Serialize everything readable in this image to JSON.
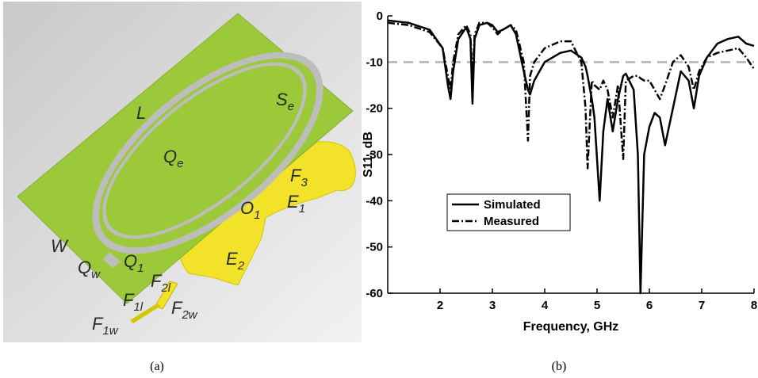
{
  "diagram": {
    "caption": "(a)",
    "labels": [
      {
        "text": "L"
      },
      {
        "text": "S",
        "sub": "e"
      },
      {
        "text": "Q",
        "sub": "e"
      },
      {
        "text": "F",
        "sub": "3"
      },
      {
        "text": "E",
        "sub": "1"
      },
      {
        "text": "O",
        "sub": "1"
      },
      {
        "text": "W"
      },
      {
        "text": "Q",
        "sub": "1"
      },
      {
        "text": "Q",
        "sub": "w"
      },
      {
        "text": "E",
        "sub": "2"
      },
      {
        "text": "F",
        "sub": "2l"
      },
      {
        "text": "F",
        "sub": "1l"
      },
      {
        "text": "F",
        "sub": "2w"
      },
      {
        "text": "F",
        "sub": "1w"
      }
    ]
  },
  "chart_data": {
    "type": "line",
    "caption": "(b)",
    "xlabel": "Frequency, GHz",
    "ylabel": "S11, dB",
    "xlim": [
      1,
      8
    ],
    "ylim": [
      -60,
      0
    ],
    "xticks": [
      2,
      3,
      4,
      5,
      6,
      7,
      8
    ],
    "yticks": [
      -60,
      -50,
      -40,
      -30,
      -20,
      -10,
      0
    ],
    "grid": false,
    "legend": "center left",
    "ref_line": {
      "y": -10,
      "color": "#b3b3b3"
    },
    "x": [
      1.0,
      1.4,
      1.8,
      2.05,
      2.15,
      2.2,
      2.25,
      2.35,
      2.5,
      2.58,
      2.62,
      2.66,
      2.75,
      2.9,
      3.0,
      3.1,
      3.2,
      3.35,
      3.45,
      3.6,
      3.68,
      3.72,
      3.8,
      4.0,
      4.3,
      4.5,
      4.7,
      4.78,
      4.82,
      4.9,
      4.95,
      5.05,
      5.12,
      5.2,
      5.3,
      5.4,
      5.5,
      5.55,
      5.7,
      5.78,
      5.83,
      5.9,
      6.0,
      6.1,
      6.2,
      6.3,
      6.45,
      6.6,
      6.75,
      6.85,
      6.95,
      7.1,
      7.3,
      7.5,
      7.7,
      7.85,
      8.0
    ],
    "series": [
      {
        "name": "Simulated",
        "color": "#000000",
        "style": "solid",
        "values": [
          -1,
          -1.5,
          -3,
          -7,
          -15,
          -18,
          -12,
          -5,
          -2.5,
          -5,
          -19,
          -5,
          -2,
          -1.5,
          -2,
          -3.5,
          -3,
          -2,
          -4,
          -12,
          -16,
          -17,
          -14,
          -10,
          -8,
          -7.5,
          -9,
          -11,
          -13,
          -18,
          -22,
          -40,
          -25,
          -18,
          -25,
          -18,
          -13,
          -12.5,
          -16,
          -30,
          -60,
          -30,
          -24,
          -21,
          -22,
          -28,
          -20,
          -12,
          -14,
          -20,
          -13,
          -9,
          -6,
          -5,
          -4.5,
          -6,
          -6.5
        ]
      },
      {
        "name": "Measured",
        "color": "#000000",
        "style": "dashdot",
        "values": [
          -1.5,
          -2,
          -3.5,
          -7,
          -13,
          -16,
          -10,
          -4,
          -2,
          -4,
          -14,
          -4,
          -1.5,
          -1.5,
          -2.5,
          -4,
          -3,
          -2,
          -3,
          -10,
          -27,
          -13,
          -10,
          -7,
          -5.5,
          -5.5,
          -10,
          -20,
          -33,
          -14,
          -15,
          -16,
          -14,
          -16,
          -22,
          -15,
          -31,
          -14,
          -13,
          -13,
          -13.5,
          -14,
          -14,
          -16,
          -18,
          -15,
          -10,
          -8.5,
          -11,
          -16,
          -12,
          -9,
          -8,
          -7.5,
          -7,
          -9,
          -11.5
        ]
      }
    ]
  }
}
